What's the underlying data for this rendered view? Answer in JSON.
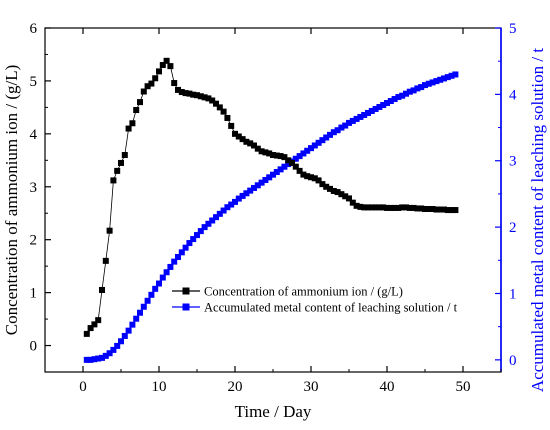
{
  "chart_data": {
    "type": "scatter",
    "title": "",
    "xlabel": "Time / Day",
    "ylabel_left": "Concentration of ammonium ion / (g/L)",
    "ylabel_right": "Accumulated metal content of leaching solution / t",
    "xlim": [
      -5,
      55
    ],
    "ylim_left": [
      -0.5,
      6
    ],
    "ylim_right": [
      -0.183,
      5
    ],
    "x_ticks": [
      "0",
      "10",
      "20",
      "30",
      "40",
      "50"
    ],
    "y_left_ticks": [
      "0",
      "1",
      "2",
      "3",
      "4",
      "5",
      "6"
    ],
    "y_right_ticks": [
      "0",
      "1",
      "2",
      "3",
      "4",
      "5"
    ],
    "grid": false,
    "legend_position": "lower-center",
    "colors": {
      "series1": "#000000",
      "series2": "#0000ff",
      "right_axis": "#0000ff"
    },
    "series": [
      {
        "name": "Concentration of ammonium ion / (g/L)",
        "axis": "left",
        "marker": "square",
        "color": "#000000",
        "x": [
          0.5,
          1.0,
          1.5,
          2.0,
          2.5,
          3.0,
          3.5,
          4.0,
          4.5,
          5.0,
          5.5,
          6.0,
          6.5,
          7.0,
          7.5,
          8.0,
          8.5,
          9.0,
          9.5,
          10.0,
          10.5,
          11.0,
          11.5,
          12.0,
          12.5,
          13.0,
          13.5,
          14.0,
          14.5,
          15.0,
          15.5,
          16.0,
          16.5,
          17.0,
          17.5,
          18.0,
          18.5,
          19.0,
          19.5,
          20.0,
          20.5,
          21.0,
          21.5,
          22.0,
          22.5,
          23.0,
          23.5,
          24.0,
          24.5,
          25.0,
          25.5,
          26.0,
          26.5,
          27.0,
          27.5,
          28.0,
          28.5,
          29.0,
          29.5,
          30.0,
          30.5,
          31.0,
          31.5,
          32.0,
          32.5,
          33.0,
          33.5,
          34.0,
          34.5,
          35.0,
          35.5,
          36.0,
          36.5,
          37.0,
          37.5,
          38.0,
          38.5,
          39.0,
          39.5,
          40.0,
          40.5,
          41.0,
          41.5,
          42.0,
          42.5,
          43.0,
          43.5,
          44.0,
          44.5,
          45.0,
          45.5,
          46.0,
          46.5,
          47.0,
          47.5,
          48.0,
          48.5,
          49.0
        ],
        "y": [
          0.22,
          0.33,
          0.4,
          0.48,
          1.05,
          1.6,
          2.17,
          3.12,
          3.3,
          3.45,
          3.6,
          4.1,
          4.2,
          4.45,
          4.6,
          4.8,
          4.9,
          4.95,
          5.05,
          5.18,
          5.3,
          5.38,
          5.28,
          4.96,
          4.83,
          4.79,
          4.77,
          4.76,
          4.74,
          4.73,
          4.71,
          4.69,
          4.67,
          4.63,
          4.57,
          4.5,
          4.42,
          4.3,
          4.15,
          4.0,
          3.95,
          3.9,
          3.85,
          3.82,
          3.78,
          3.72,
          3.67,
          3.65,
          3.63,
          3.6,
          3.59,
          3.58,
          3.56,
          3.5,
          3.45,
          3.38,
          3.3,
          3.23,
          3.2,
          3.18,
          3.16,
          3.12,
          3.05,
          3.0,
          2.96,
          2.92,
          2.9,
          2.86,
          2.82,
          2.78,
          2.7,
          2.64,
          2.62,
          2.61,
          2.61,
          2.61,
          2.61,
          2.61,
          2.61,
          2.6,
          2.6,
          2.6,
          2.6,
          2.61,
          2.61,
          2.6,
          2.6,
          2.59,
          2.59,
          2.58,
          2.58,
          2.58,
          2.57,
          2.57,
          2.57,
          2.56,
          2.56,
          2.56
        ]
      },
      {
        "name": "Accumulated metal content of leaching solution / t",
        "axis": "right",
        "marker": "square",
        "color": "#0000ff",
        "x": [
          0.5,
          1.0,
          1.5,
          2.0,
          2.5,
          3.0,
          3.5,
          4.0,
          4.5,
          5.0,
          5.5,
          6.0,
          6.5,
          7.0,
          7.5,
          8.0,
          8.5,
          9.0,
          9.5,
          10.0,
          10.5,
          11.0,
          11.5,
          12.0,
          12.5,
          13.0,
          13.5,
          14.0,
          14.5,
          15.0,
          15.5,
          16.0,
          16.5,
          17.0,
          17.5,
          18.0,
          18.5,
          19.0,
          19.5,
          20.0,
          20.5,
          21.0,
          21.5,
          22.0,
          22.5,
          23.0,
          23.5,
          24.0,
          24.5,
          25.0,
          25.5,
          26.0,
          26.5,
          27.0,
          27.5,
          28.0,
          28.5,
          29.0,
          29.5,
          30.0,
          30.5,
          31.0,
          31.5,
          32.0,
          32.5,
          33.0,
          33.5,
          34.0,
          34.5,
          35.0,
          35.5,
          36.0,
          36.5,
          37.0,
          37.5,
          38.0,
          38.5,
          39.0,
          39.5,
          40.0,
          40.5,
          41.0,
          41.5,
          42.0,
          42.5,
          43.0,
          43.5,
          44.0,
          44.5,
          45.0,
          45.5,
          46.0,
          46.5,
          47.0,
          47.5,
          48.0,
          48.5,
          49.0
        ],
        "y": [
          0.0,
          0.0,
          0.01,
          0.02,
          0.03,
          0.06,
          0.1,
          0.15,
          0.21,
          0.28,
          0.36,
          0.44,
          0.53,
          0.62,
          0.71,
          0.8,
          0.89,
          0.98,
          1.07,
          1.15,
          1.24,
          1.32,
          1.4,
          1.48,
          1.55,
          1.62,
          1.69,
          1.76,
          1.82,
          1.88,
          1.94,
          2.0,
          2.05,
          2.1,
          2.15,
          2.2,
          2.25,
          2.3,
          2.34,
          2.38,
          2.43,
          2.47,
          2.51,
          2.55,
          2.59,
          2.63,
          2.67,
          2.71,
          2.75,
          2.79,
          2.83,
          2.87,
          2.91,
          2.95,
          2.99,
          3.03,
          3.07,
          3.11,
          3.15,
          3.19,
          3.23,
          3.27,
          3.31,
          3.35,
          3.39,
          3.43,
          3.46,
          3.5,
          3.53,
          3.57,
          3.6,
          3.63,
          3.66,
          3.69,
          3.72,
          3.75,
          3.78,
          3.81,
          3.84,
          3.87,
          3.9,
          3.93,
          3.96,
          3.98,
          4.01,
          4.04,
          4.06,
          4.09,
          4.11,
          4.14,
          4.16,
          4.18,
          4.2,
          4.22,
          4.24,
          4.26,
          4.28,
          4.3
        ]
      }
    ]
  }
}
